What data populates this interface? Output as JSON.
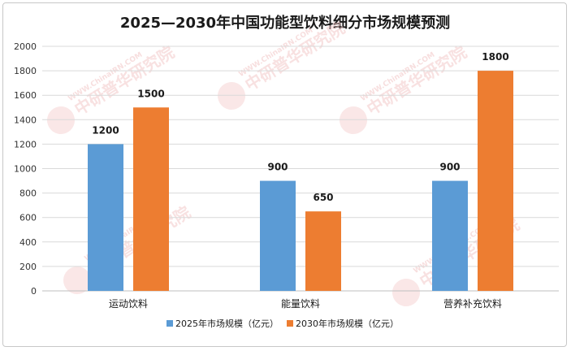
{
  "chart_data": {
    "type": "bar",
    "title": "2025—2030年中国功能型饮料细分市场规模预测",
    "categories": [
      "运动饮料",
      "能量饮料",
      "营养补充饮料"
    ],
    "series": [
      {
        "name": "2025年市场规模（亿元）",
        "values": [
          1200,
          900,
          900
        ],
        "color": "#5b9bd5"
      },
      {
        "name": "2030年市场规模（亿元）",
        "values": [
          1500,
          650,
          1800
        ],
        "color": "#ed7d31"
      }
    ],
    "ylim": [
      0,
      2000
    ],
    "yticks": [
      0,
      200,
      400,
      600,
      800,
      1000,
      1200,
      1400,
      1600,
      1800,
      2000
    ],
    "grid": true,
    "legend_position": "bottom",
    "watermark": {
      "text": "中研普华研究院",
      "url": "WWW.ChinaIRN.COM",
      "logo": "CIRN"
    }
  }
}
